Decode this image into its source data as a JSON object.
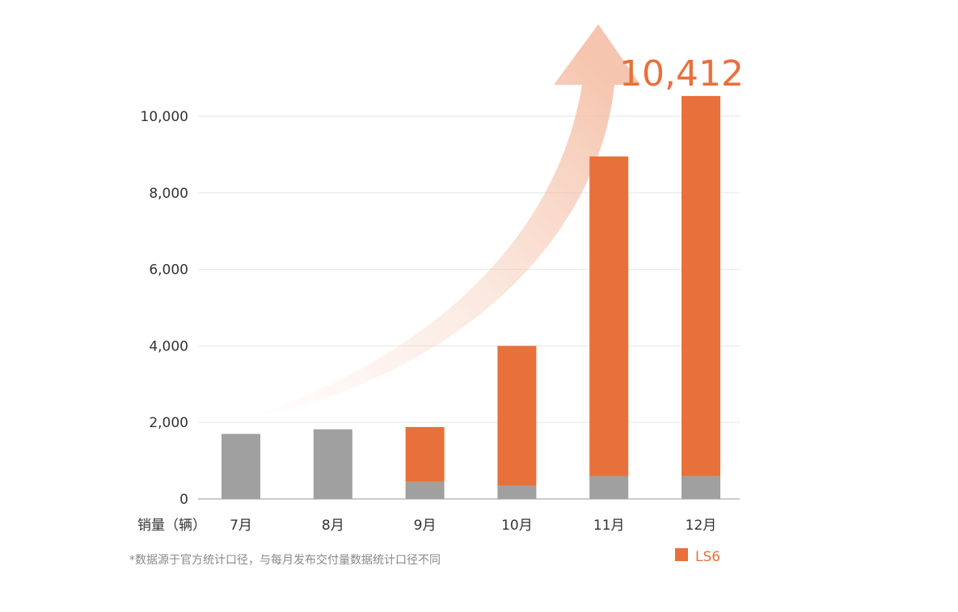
{
  "chart_data": {
    "type": "bar",
    "stacked": true,
    "categories": [
      "7月",
      "8月",
      "9月",
      "10月",
      "11月",
      "12月"
    ],
    "series": [
      {
        "color": "#a0a0a0",
        "values": [
          1700,
          1820,
          450,
          350,
          600,
          600
        ]
      },
      {
        "name": "LS6",
        "color": "#e8703a",
        "values": [
          0,
          0,
          1430,
          3650,
          8350,
          9930
        ]
      }
    ],
    "ylim": [
      0,
      10412
    ],
    "yticks": [
      0,
      2000,
      4000,
      6000,
      8000,
      10000
    ],
    "ytick_labels": [
      "0",
      "2,000",
      "4,000",
      "6,000",
      "8,000",
      "10,000"
    ],
    "xlabel": "销量（辆）",
    "legend": {
      "label": "LS6",
      "color": "#e8703a",
      "position": "bottom-right"
    },
    "highlight": {
      "text": "10,412",
      "color": "#e8703a"
    },
    "footnote": "*数据源于官方统计口径，与每月发布交付量数据统计口径不同",
    "grid": true,
    "arrow_color": "#f6c9b3"
  }
}
